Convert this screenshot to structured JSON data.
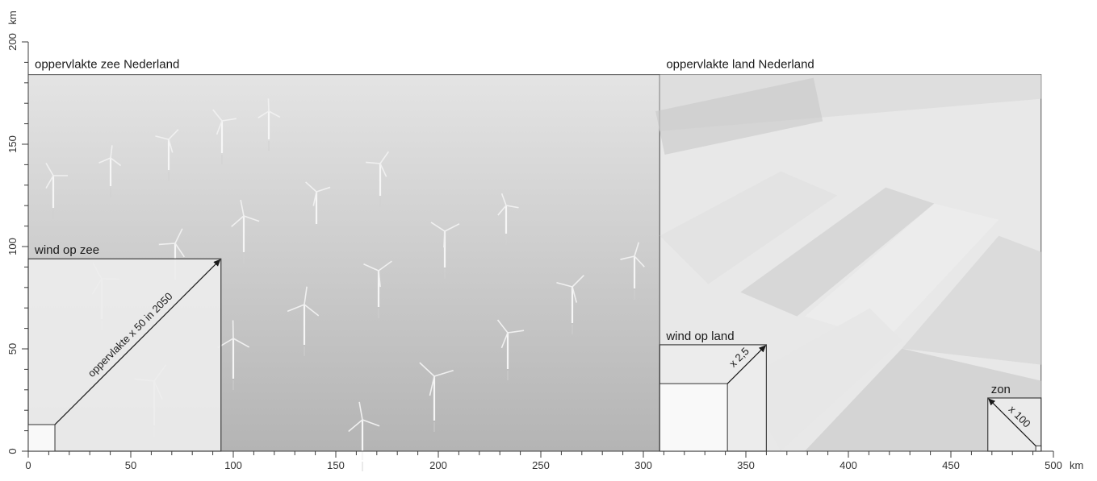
{
  "axes": {
    "x_unit": "km",
    "y_unit": "km",
    "x_ticks": [
      "0",
      "50",
      "100",
      "150",
      "200",
      "250",
      "300",
      "350",
      "400",
      "450",
      "500"
    ],
    "y_ticks": [
      "0",
      "50",
      "100",
      "150",
      "200"
    ],
    "x_range": [
      0,
      500
    ],
    "y_range": [
      0,
      200
    ]
  },
  "regions": {
    "sea": {
      "label": "oppervlakte zee Nederland",
      "x": [
        0,
        308
      ],
      "y": [
        0,
        184
      ]
    },
    "land": {
      "label": "oppervlakte land Nederland",
      "x": [
        308,
        494
      ],
      "y": [
        0,
        184
      ]
    }
  },
  "boxes": {
    "wind_sea": {
      "label": "wind op zee",
      "current_side_km": 13,
      "future_side_km": 94,
      "arrow_label": "oppervlakte x 50 in 2050"
    },
    "wind_land": {
      "label": "wind op land",
      "current_side_km": 33,
      "future_side_km": 52,
      "arrow_label": "x 2,5"
    },
    "sun": {
      "label": "zon",
      "current_side_km": 2.6,
      "future_side_km": 26,
      "arrow_label": "x 100"
    }
  },
  "colors": {
    "axis": "#3c3c3c",
    "sea_top": "#e4e4e4",
    "sea_bottom": "#b4b4b4",
    "land_base": "#e8e8e8",
    "box_fill": "#ededed",
    "current_fill": "#f9f9f9"
  }
}
